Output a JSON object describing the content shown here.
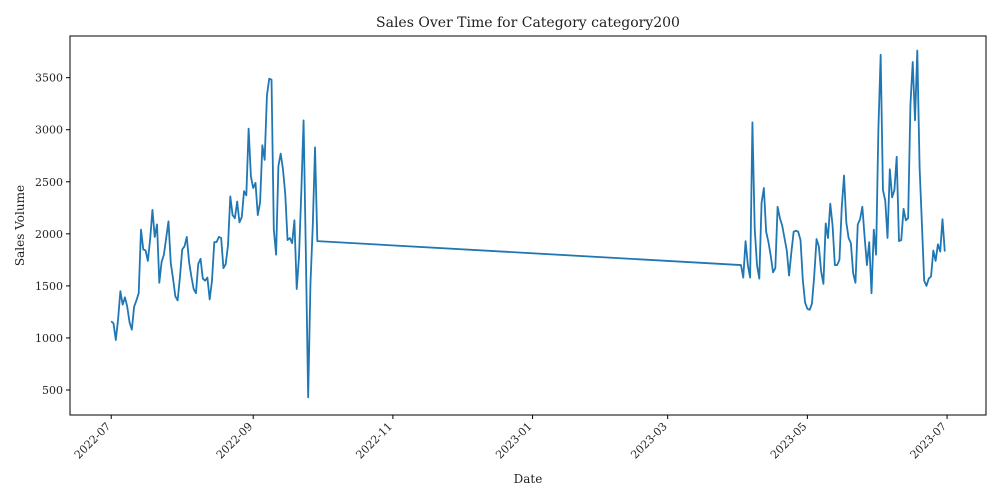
{
  "chart_data": {
    "type": "line",
    "title": "Sales Over Time for Category category200",
    "xlabel": "Date",
    "ylabel": "Sales Volume",
    "xlim": [
      "2022-06-13",
      "2023-07-18"
    ],
    "ylim": [
      260,
      3900
    ],
    "x_ticks": [
      "2022-07-01",
      "2022-09-01",
      "2022-11-01",
      "2023-01-01",
      "2023-03-01",
      "2023-05-01",
      "2023-07-01"
    ],
    "x_tick_labels": [
      "2022-07",
      "2022-09",
      "2022-11",
      "2023-01",
      "2023-03",
      "2023-05",
      "2023-07"
    ],
    "y_ticks": [
      500,
      1000,
      1500,
      2000,
      2500,
      3000,
      3500
    ],
    "y_tick_labels": [
      "500",
      "1000",
      "1500",
      "2000",
      "2500",
      "3000",
      "3500"
    ],
    "grid": false,
    "line_color": "#1f77b4",
    "series": [
      {
        "x": [
          "2022-07-01",
          "2022-07-02",
          "2022-07-03",
          "2022-07-04",
          "2022-07-05",
          "2022-07-06",
          "2022-07-07",
          "2022-07-08",
          "2022-07-09",
          "2022-07-10",
          "2022-07-11",
          "2022-07-12",
          "2022-07-13",
          "2022-07-14",
          "2022-07-15",
          "2022-07-16",
          "2022-07-17",
          "2022-07-18",
          "2022-07-19",
          "2022-07-20",
          "2022-07-21",
          "2022-07-22",
          "2022-07-23",
          "2022-07-24",
          "2022-07-25",
          "2022-07-26",
          "2022-07-27",
          "2022-07-28",
          "2022-07-29",
          "2022-07-30",
          "2022-07-31",
          "2022-08-01",
          "2022-08-02",
          "2022-08-03",
          "2022-08-04",
          "2022-08-05",
          "2022-08-06",
          "2022-08-07",
          "2022-08-08",
          "2022-08-09",
          "2022-08-10",
          "2022-08-11",
          "2022-08-12",
          "2022-08-13",
          "2022-08-14",
          "2022-08-15",
          "2022-08-16",
          "2022-08-17",
          "2022-08-18",
          "2022-08-19",
          "2022-08-20",
          "2022-08-21",
          "2022-08-22",
          "2022-08-23",
          "2022-08-24",
          "2022-08-25",
          "2022-08-26",
          "2022-08-27",
          "2022-08-28",
          "2022-08-29",
          "2022-08-30",
          "2022-08-31",
          "2022-09-01",
          "2022-09-02",
          "2022-09-03",
          "2022-09-04",
          "2022-09-05",
          "2022-09-06",
          "2022-09-07",
          "2022-09-08",
          "2022-09-09",
          "2022-09-10",
          "2022-09-11",
          "2022-09-12",
          "2022-09-13",
          "2022-09-14",
          "2022-09-15",
          "2022-09-16",
          "2022-09-17",
          "2022-09-18",
          "2022-09-19",
          "2022-09-20",
          "2022-09-21",
          "2022-09-22",
          "2022-09-23",
          "2022-09-24",
          "2022-09-25",
          "2022-09-26",
          "2022-09-27",
          "2022-09-28",
          "2022-09-29",
          "2023-04-02",
          "2023-04-03",
          "2023-04-04",
          "2023-04-05",
          "2023-04-06",
          "2023-04-07",
          "2023-04-08",
          "2023-04-09",
          "2023-04-10",
          "2023-04-11",
          "2023-04-12",
          "2023-04-13",
          "2023-04-14",
          "2023-04-15",
          "2023-04-16",
          "2023-04-17",
          "2023-04-18",
          "2023-04-19",
          "2023-04-20",
          "2023-04-21",
          "2023-04-22",
          "2023-04-23",
          "2023-04-24",
          "2023-04-25",
          "2023-04-26",
          "2023-04-27",
          "2023-04-28",
          "2023-04-29",
          "2023-04-30",
          "2023-05-01",
          "2023-05-02",
          "2023-05-03",
          "2023-05-04",
          "2023-05-05",
          "2023-05-06",
          "2023-05-07",
          "2023-05-08",
          "2023-05-09",
          "2023-05-10",
          "2023-05-11",
          "2023-05-12",
          "2023-05-13",
          "2023-05-14",
          "2023-05-15",
          "2023-05-16",
          "2023-05-17",
          "2023-05-18",
          "2023-05-19",
          "2023-05-20",
          "2023-05-21",
          "2023-05-22",
          "2023-05-23",
          "2023-05-24",
          "2023-05-25",
          "2023-05-26",
          "2023-05-27",
          "2023-05-28",
          "2023-05-29",
          "2023-05-30",
          "2023-05-31",
          "2023-06-01",
          "2023-06-02",
          "2023-06-03",
          "2023-06-04",
          "2023-06-05",
          "2023-06-06",
          "2023-06-07",
          "2023-06-08",
          "2023-06-09",
          "2023-06-10",
          "2023-06-11",
          "2023-06-12",
          "2023-06-13",
          "2023-06-14",
          "2023-06-15",
          "2023-06-16",
          "2023-06-17",
          "2023-06-18",
          "2023-06-19",
          "2023-06-20",
          "2023-06-21",
          "2023-06-22",
          "2023-06-23",
          "2023-06-24",
          "2023-06-25",
          "2023-06-26",
          "2023-06-27",
          "2023-06-28",
          "2023-06-29",
          "2023-06-30"
        ],
        "y": [
          1160,
          1140,
          980,
          1180,
          1450,
          1320,
          1390,
          1300,
          1150,
          1080,
          1300,
          1360,
          1430,
          2040,
          1850,
          1840,
          1740,
          1950,
          2230,
          1970,
          2090,
          1530,
          1730,
          1800,
          1960,
          2120,
          1720,
          1570,
          1400,
          1360,
          1580,
          1850,
          1880,
          1970,
          1730,
          1590,
          1470,
          1430,
          1710,
          1760,
          1570,
          1550,
          1580,
          1370,
          1550,
          1920,
          1920,
          1970,
          1960,
          1670,
          1710,
          1890,
          2360,
          2180,
          2150,
          2310,
          2110,
          2160,
          2410,
          2370,
          3010,
          2550,
          2440,
          2490,
          2180,
          2300,
          2850,
          2710,
          3330,
          3490,
          3480,
          2040,
          1800,
          2650,
          2770,
          2620,
          2380,
          1940,
          1960,
          1910,
          2130,
          1470,
          1780,
          2400,
          3090,
          1800,
          430,
          1520,
          2070,
          2830,
          1930,
          1700,
          1580,
          1930,
          1700,
          1580,
          3070,
          2050,
          1700,
          1570,
          2300,
          2440,
          2020,
          1920,
          1790,
          1630,
          1670,
          2260,
          2150,
          2080,
          1960,
          1840,
          1600,
          1820,
          2020,
          2030,
          2020,
          1940,
          1560,
          1340,
          1280,
          1270,
          1330,
          1600,
          1950,
          1880,
          1640,
          1520,
          2100,
          1960,
          2290,
          2080,
          1700,
          1700,
          1750,
          2250,
          2560,
          2110,
          1960,
          1910,
          1620,
          1530,
          2090,
          2140,
          2260,
          1970,
          1700,
          1920,
          1430,
          2040,
          1800,
          3000,
          3720,
          2420,
          2320,
          1960,
          2620,
          2350,
          2420,
          2740,
          1930,
          1940,
          2240,
          2130,
          2150,
          3240,
          3650,
          3090,
          3760,
          2640,
          2100,
          1550,
          1500,
          1570,
          1590,
          1840,
          1740,
          1900,
          1830,
          2140,
          1830
        ]
      }
    ]
  }
}
